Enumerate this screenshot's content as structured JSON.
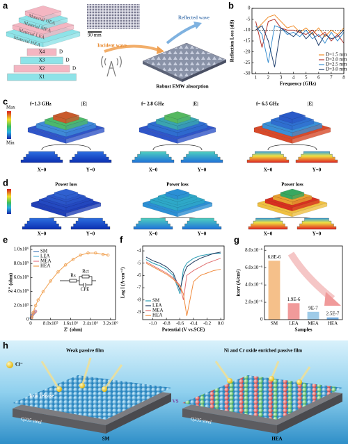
{
  "panel_labels": [
    "a",
    "b",
    "c",
    "d",
    "e",
    "f",
    "g",
    "h"
  ],
  "panel_a": {
    "layers": [
      "Material HEA",
      "Material MEA",
      "Material LEA",
      "Material HEA"
    ],
    "dimensions": [
      "X4",
      "X3",
      "X2",
      "X1"
    ],
    "thickness": "D",
    "scale_bar": "90 mm",
    "incident_wave": "Incident wave",
    "reflected_wave": "Reflected wave",
    "caption": "Robust EMW absorption"
  },
  "panel_c": {
    "frequencies": [
      "f=1.3 GHz",
      "f= 2.8 GHz",
      "f= 6.5 GHz"
    ],
    "quantity": "|E|",
    "scale_max": "Max",
    "scale_min": "Min",
    "sections": [
      "X=0",
      "Y=0"
    ]
  },
  "panel_d": {
    "title": "Power loss",
    "sections": [
      "X=0",
      "Y=0"
    ]
  },
  "panel_h": {
    "left_title": "Weak passive film",
    "right_title": "Ni and Cr oxide enriched passive film",
    "ion": "Cl⁻",
    "release": "Iron release",
    "versus": "VS",
    "substrate": "Q235 steel",
    "left_sample": "SM",
    "right_sample": "HEA"
  },
  "chart_data": [
    {
      "type": "line",
      "xlabel": "Frequency (GHz)",
      "ylabel": "Reflection Loss (dB)",
      "x": [
        1,
        1.5,
        2,
        2.5,
        3,
        3.5,
        4,
        4.5,
        5,
        5.5,
        6,
        6.5,
        7,
        7.5,
        8
      ],
      "series": [
        {
          "name": "D=1.5 mm",
          "color": "#f08a24",
          "values": [
            -10,
            -7,
            -4,
            -3,
            -6,
            -9,
            -8,
            -11,
            -9,
            -12,
            -9,
            -13,
            -10,
            -12,
            -9
          ]
        },
        {
          "name": "D=2.0 mm",
          "color": "#b5332a",
          "values": [
            -6,
            -18,
            -6,
            -5,
            -9,
            -10,
            -10,
            -11,
            -12,
            -10,
            -13,
            -11,
            -15,
            -12,
            -16
          ]
        },
        {
          "name": "D=2.5 mm",
          "color": "#3a8fd0",
          "values": [
            -8,
            -12,
            -25,
            -8,
            -9,
            -12,
            -11,
            -13,
            -10,
            -14,
            -12,
            -16,
            -11,
            -15,
            -11
          ]
        },
        {
          "name": "D=3.0 mm",
          "color": "#1f3f6e",
          "values": [
            -10,
            -8,
            -15,
            -27,
            -9,
            -11,
            -13,
            -10,
            -14,
            -11,
            -17,
            -12,
            -14,
            -13,
            -10
          ]
        }
      ],
      "xlim": [
        0.7,
        8
      ],
      "ylim": [
        -30,
        0
      ],
      "xticks": [
        1,
        2,
        3,
        4,
        5,
        6,
        7,
        8
      ],
      "yticks": [
        0,
        -5,
        -10,
        -15,
        -20,
        -25,
        -30
      ],
      "reference_line": -10,
      "legend": "lower right",
      "markers": false
    },
    {
      "type": "line",
      "xlabel": "Z' (ohm)",
      "ylabel": "Z'' (ohm)",
      "markers": true,
      "legend": "upper left",
      "series": [
        {
          "name": "SM",
          "color": "#4a7ebb",
          "x": [
            20000,
            50000,
            100000,
            150000
          ],
          "values": [
            20000,
            50000,
            80000,
            100000
          ]
        },
        {
          "name": "LEA",
          "color": "#5fb3d9",
          "x": [
            20000,
            60000,
            120000,
            180000
          ],
          "values": [
            25000,
            60000,
            90000,
            110000
          ]
        },
        {
          "name": "MEA",
          "color": "#e67a8a",
          "x": [
            30000,
            70000,
            130000,
            200000
          ],
          "values": [
            30000,
            65000,
            95000,
            120000
          ]
        },
        {
          "name": "HEA",
          "color": "#f0a050",
          "x": [
            50000,
            100000,
            200000,
            300000,
            500000,
            800000,
            1100000,
            1400000,
            1700000,
            2000000,
            2300000,
            2600000,
            2900000,
            3100000
          ],
          "values": [
            30000,
            100000,
            200000,
            280000,
            400000,
            550000,
            680000,
            780000,
            860000,
            920000,
            950000,
            950000,
            930000,
            920000
          ]
        }
      ],
      "xlim": [
        0,
        3400000
      ],
      "ylim": [
        0,
        1050000
      ],
      "xticks": [
        0,
        {
          "value": 800000,
          "label": "8.0x10⁵"
        },
        {
          "value": 1600000,
          "label": "1.6x10⁶"
        },
        {
          "value": 2400000,
          "label": "2.4x10⁶"
        },
        {
          "value": 3200000,
          "label": "3.2x10⁶"
        }
      ],
      "yticks": [
        0,
        {
          "value": 200000,
          "label": "2.0x10⁵"
        },
        {
          "value": 400000,
          "label": "4.0x10⁵"
        },
        {
          "value": 600000,
          "label": "6.0x10⁵"
        },
        {
          "value": 800000,
          "label": "8.0x10⁵"
        },
        {
          "value": 1000000,
          "label": "1.0x10⁶"
        }
      ],
      "inset_labels": [
        "Rs",
        "Rct",
        "CPE"
      ]
    },
    {
      "type": "line",
      "xlabel": "Potential (V vs.SCE)",
      "ylabel": "Log I (A·cm⁻²)",
      "markers": false,
      "legend": "lower left",
      "x": [
        -1.1,
        -1.0,
        -0.9,
        -0.8,
        -0.7,
        -0.6,
        -0.55,
        -0.5,
        -0.4,
        -0.3,
        -0.2,
        -0.1,
        0.0
      ],
      "series": [
        {
          "name": "SM",
          "color": "#2a9db5",
          "values": [
            -4.7,
            -5.0,
            -5.2,
            -5.5,
            -6.0,
            -7.5,
            -5.5,
            -5.0,
            -4.6,
            -4.4,
            -4.3,
            -4.2,
            -4.2
          ]
        },
        {
          "name": "LEA",
          "color": "#1f3a5f",
          "values": [
            -4.5,
            -4.8,
            -5.0,
            -5.3,
            -5.8,
            -7.2,
            -6.0,
            -5.3,
            -4.9,
            -4.6,
            -4.4,
            -4.2,
            -4.1
          ]
        },
        {
          "name": "MEA",
          "color": "#e07070",
          "values": [
            -4.9,
            -5.2,
            -5.5,
            -5.8,
            -6.2,
            -6.8,
            -8.0,
            -6.0,
            -5.6,
            -5.3,
            -5.0,
            -4.8,
            -4.6
          ]
        },
        {
          "name": "HEA",
          "color": "#f08a3c",
          "values": [
            -5.0,
            -5.3,
            -5.6,
            -5.9,
            -6.3,
            -6.9,
            -7.5,
            -9.3,
            -6.5,
            -6.0,
            -5.8,
            -5.6,
            -5.5
          ]
        }
      ],
      "xlim": [
        -1.15,
        0.05
      ],
      "ylim": [
        -9.6,
        -3.6
      ],
      "xticks": [
        {
          "value": -1,
          "label": "-1.0"
        },
        -0.8,
        -0.6,
        -0.4,
        -0.2,
        {
          "value": 0,
          "label": "0.0"
        }
      ],
      "yticks": [
        -4,
        -5,
        -6,
        -7,
        -8,
        -9
      ]
    },
    {
      "type": "bar",
      "xlabel": "Samples",
      "ylabel": "icorr (A/cm²)",
      "categories": [
        "SM",
        "LEA",
        "MEA",
        "HEA"
      ],
      "values": [
        6.8e-06,
        1.9e-06,
        9e-07,
        2.5e-07
      ],
      "value_labels": [
        "6.8E-6",
        "1.9E-6",
        "9E-7",
        "2.5E-7"
      ],
      "colors": [
        "#f5c08a",
        "#f19a9a",
        "#9ecbe8",
        "#6fa8dc"
      ],
      "ylim": [
        0,
        8.5e-06
      ],
      "yticks": [
        0,
        {
          "value": 2e-06,
          "label": "2.0x10⁻⁶"
        },
        {
          "value": 4e-06,
          "label": "4.0x10⁻⁶"
        },
        {
          "value": 6e-06,
          "label": "6.0x10⁻⁶"
        },
        {
          "value": 8e-06,
          "label": "8.0x10⁻⁶"
        }
      ]
    }
  ]
}
